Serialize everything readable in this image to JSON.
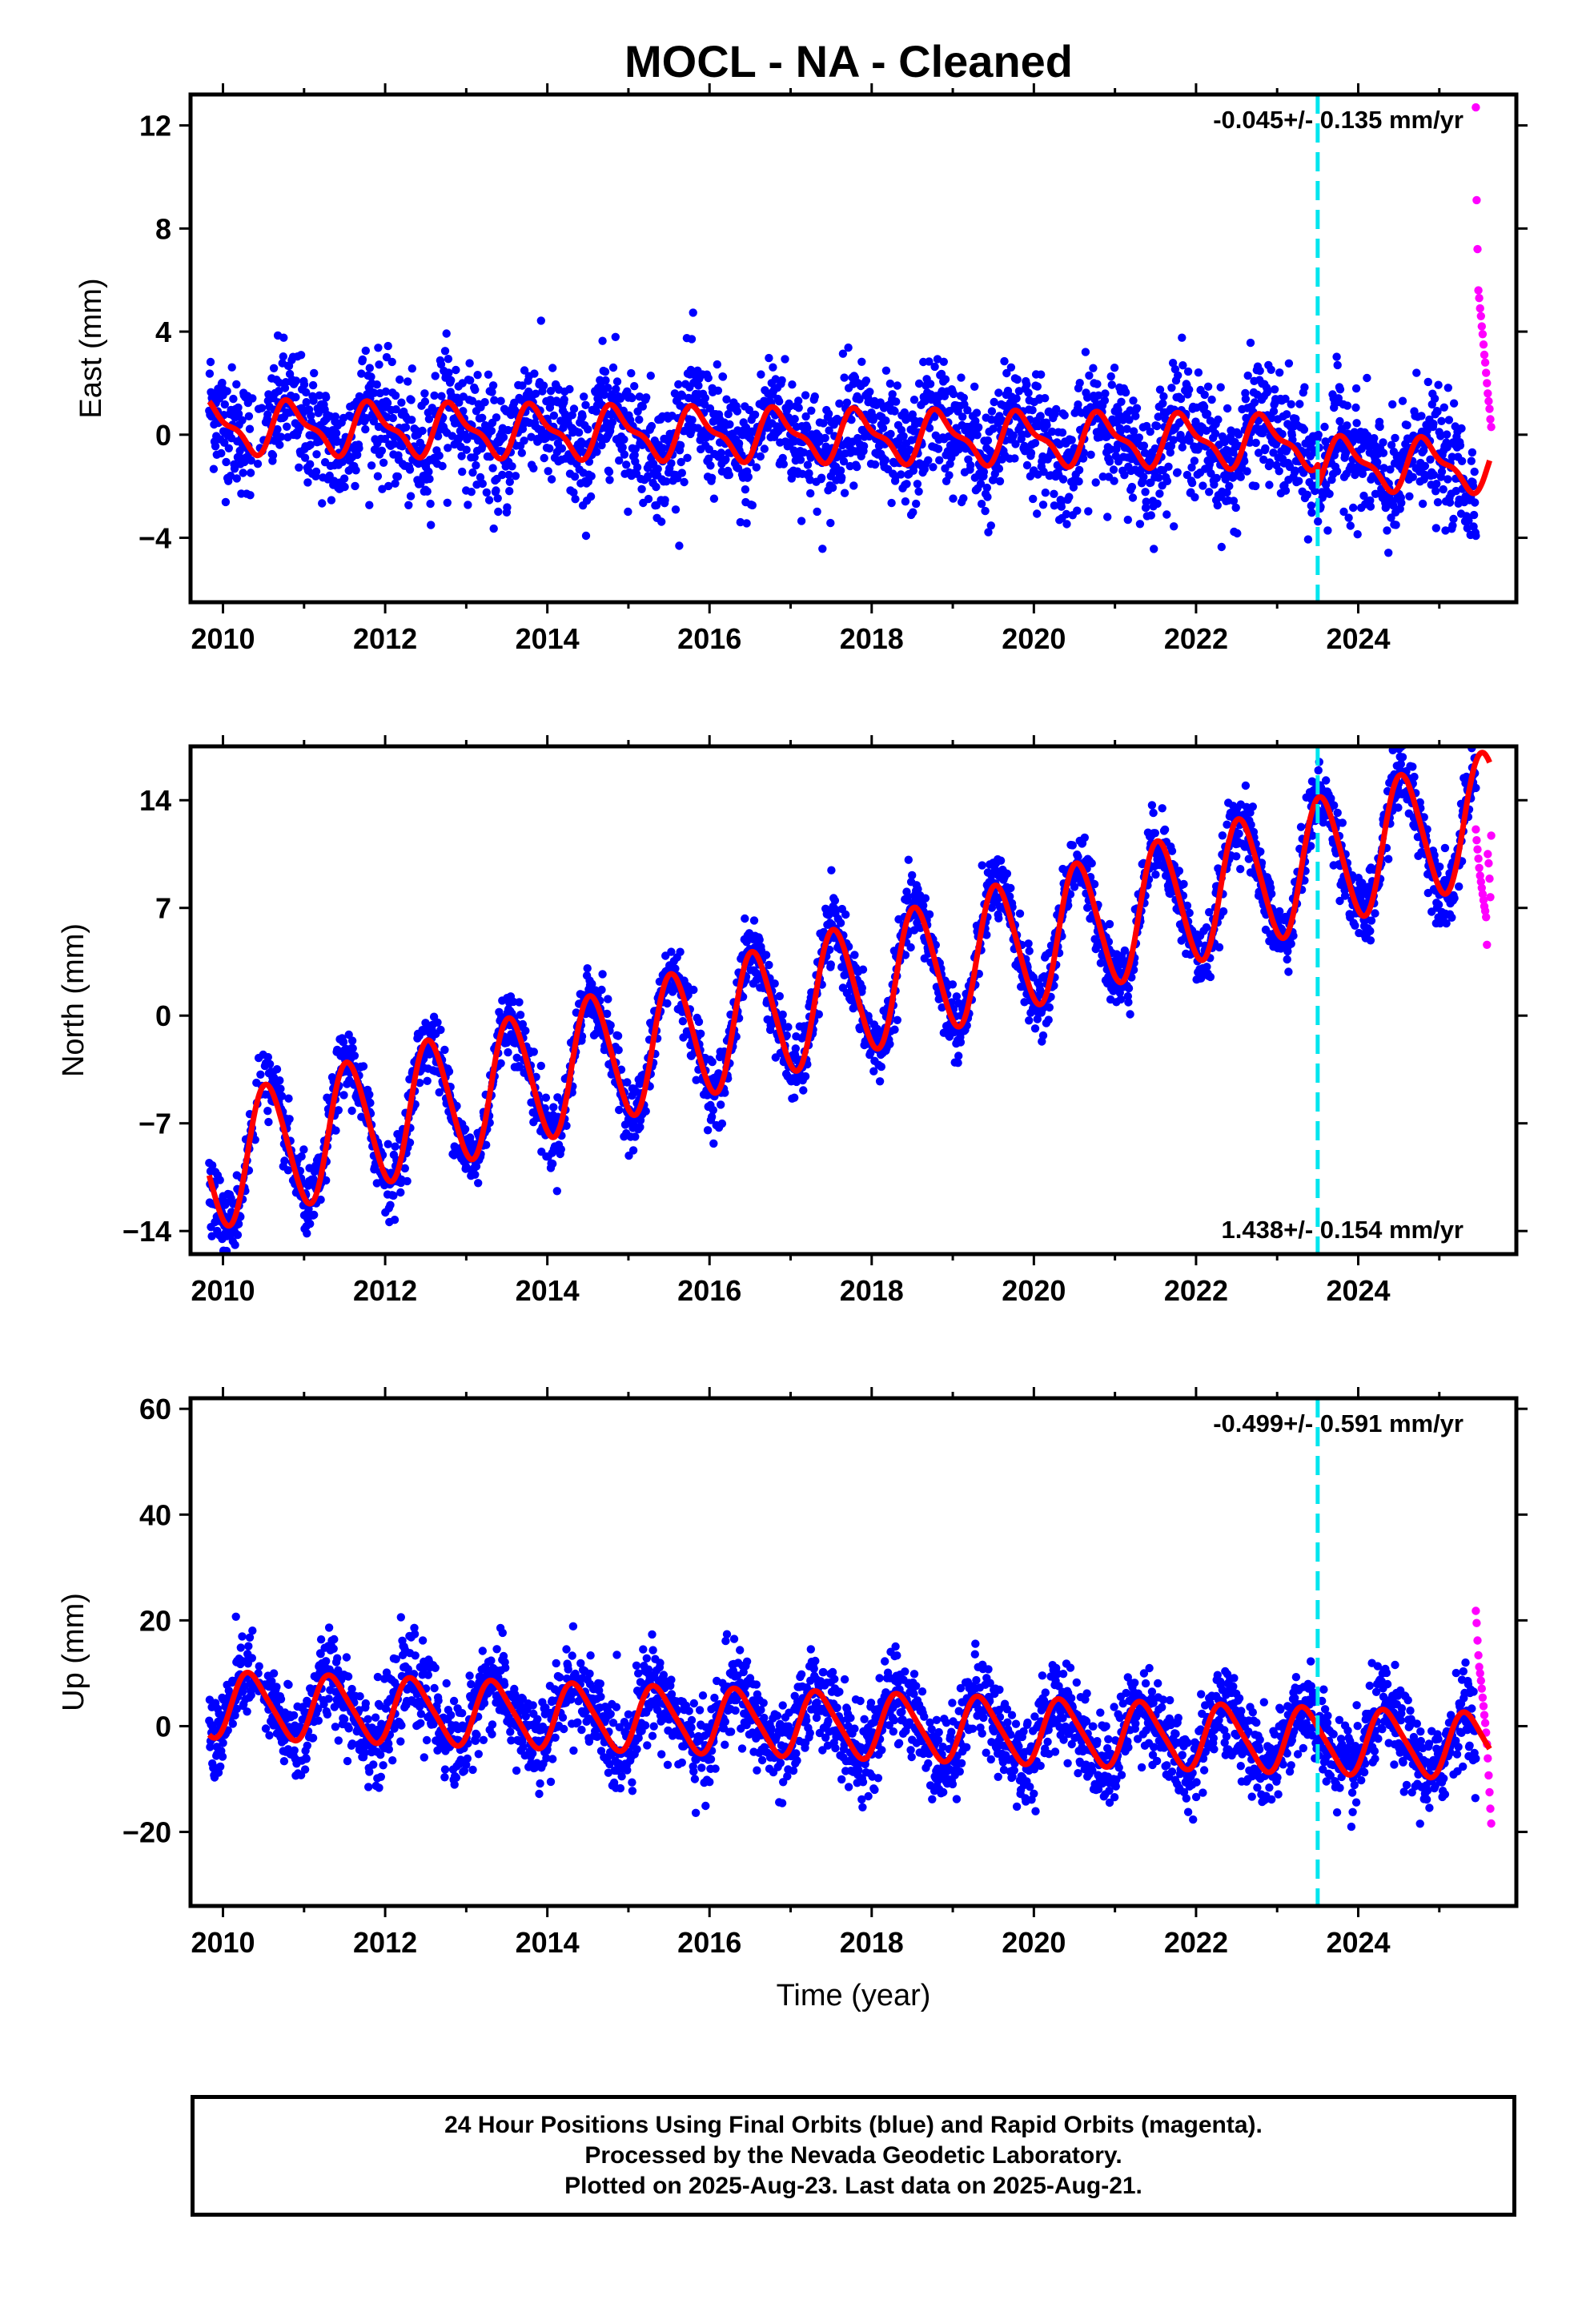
{
  "title": "MOCL  - NA - Cleaned",
  "footer": {
    "line1": "24 Hour Positions Using Final Orbits (blue) and Rapid Orbits (magenta).",
    "line2": "Processed by the Nevada Geodetic Laboratory.",
    "line3": "Plotted on 2025-Aug-23. Last data on 2025-Aug-21."
  },
  "colors": {
    "final_orbits": "#0000ff",
    "rapid_orbits": "#ff00ff",
    "model": "#ff0000",
    "event_line": "#00e5ee"
  },
  "chart_data": [
    {
      "type": "scatter",
      "panel": "east",
      "ylabel": "East (mm)",
      "xlabel": "",
      "xlim": [
        2009.6,
        2025.95
      ],
      "ylim": [
        -6.5,
        13.2
      ],
      "xticks": [
        2010,
        2012,
        2014,
        2016,
        2018,
        2020,
        2022,
        2024
      ],
      "xtick_labels": [
        "2010",
        "2012",
        "2014",
        "2016",
        "2018",
        "2020",
        "2022",
        "2024"
      ],
      "yticks": [
        -4,
        0,
        4,
        8,
        12
      ],
      "ytick_labels": [
        "−4",
        "0",
        "4",
        "8",
        "12"
      ],
      "rate": "-0.045+/- 0.135 mm/yr",
      "event_line_x": 2023.5,
      "model": {
        "base": 0.3,
        "slope": -0.045,
        "annual": 0.9,
        "semiannual": 0.35,
        "phase": 0.6,
        "step_x": 2023.5,
        "step": -0.8,
        "noise": 1.15
      },
      "rapid": {
        "x_start": 2025.45,
        "x_end": 2025.64,
        "values": [
          12.7,
          9.1,
          7.2,
          5.6,
          5.3,
          4.9,
          4.6,
          4.2,
          3.9,
          3.5,
          3.1,
          2.8,
          2.4,
          2.0,
          1.6,
          1.3,
          1.0,
          0.6,
          0.3
        ]
      }
    },
    {
      "type": "scatter",
      "panel": "north",
      "ylabel": "North (mm)",
      "xlabel": "",
      "xlim": [
        2009.6,
        2025.95
      ],
      "ylim": [
        -15.5,
        17.5
      ],
      "xticks": [
        2010,
        2012,
        2014,
        2016,
        2018,
        2020,
        2022,
        2024
      ],
      "xtick_labels": [
        "2010",
        "2012",
        "2014",
        "2016",
        "2018",
        "2020",
        "2022",
        "2024"
      ],
      "yticks": [
        -14,
        -7,
        0,
        7,
        14
      ],
      "ytick_labels": [
        "−14",
        "−7",
        "0",
        "7",
        "14"
      ],
      "rate": "1.438+/- 0.154 mm/yr",
      "event_line_x": 2023.5,
      "model": {
        "base": -9.5,
        "slope": 1.438,
        "annual": 4.2,
        "semiannual": 0.4,
        "phase": 0.3,
        "step_x": 2023.5,
        "step": 0.0,
        "noise": 1.1
      },
      "rapid": {
        "x_start": 2025.45,
        "x_end": 2025.64,
        "values": [
          12.1,
          11.4,
          10.8,
          10.2,
          9.6,
          9.1,
          8.7,
          8.3,
          7.9,
          7.5,
          7.1,
          6.8,
          6.4,
          4.6,
          10.5,
          9.9,
          8.9,
          7.7,
          11.7
        ]
      }
    },
    {
      "type": "scatter",
      "panel": "up",
      "ylabel": "Up (mm)",
      "xlabel": "Time (year)",
      "xlim": [
        2009.6,
        2025.95
      ],
      "ylim": [
        -34,
        62
      ],
      "xticks": [
        2010,
        2012,
        2014,
        2016,
        2018,
        2020,
        2022,
        2024
      ],
      "xtick_labels": [
        "2010",
        "2012",
        "2014",
        "2016",
        "2018",
        "2020",
        "2022",
        "2024"
      ],
      "yticks": [
        -20,
        0,
        20,
        40,
        60
      ],
      "ytick_labels": [
        "−20",
        "0",
        "20",
        "40",
        "60"
      ],
      "rate": "-0.499+/- 0.591 mm/yr",
      "event_line_x": 2023.5,
      "model": {
        "base": 4.0,
        "slope": -0.499,
        "annual": 6.0,
        "semiannual": 1.0,
        "phase": 0.1,
        "step_x": 2023.5,
        "step": 0.0,
        "noise": 4.2
      },
      "rapid": {
        "x_start": 2025.45,
        "x_end": 2025.64,
        "values": [
          21.8,
          19.5,
          16.2,
          13.4,
          11.2,
          10.0,
          8.6,
          7.1,
          5.4,
          3.8,
          2.1,
          0.6,
          -1.2,
          -3.4,
          -6.1,
          -9.3,
          -12.5,
          -15.6,
          -18.4
        ]
      }
    }
  ]
}
